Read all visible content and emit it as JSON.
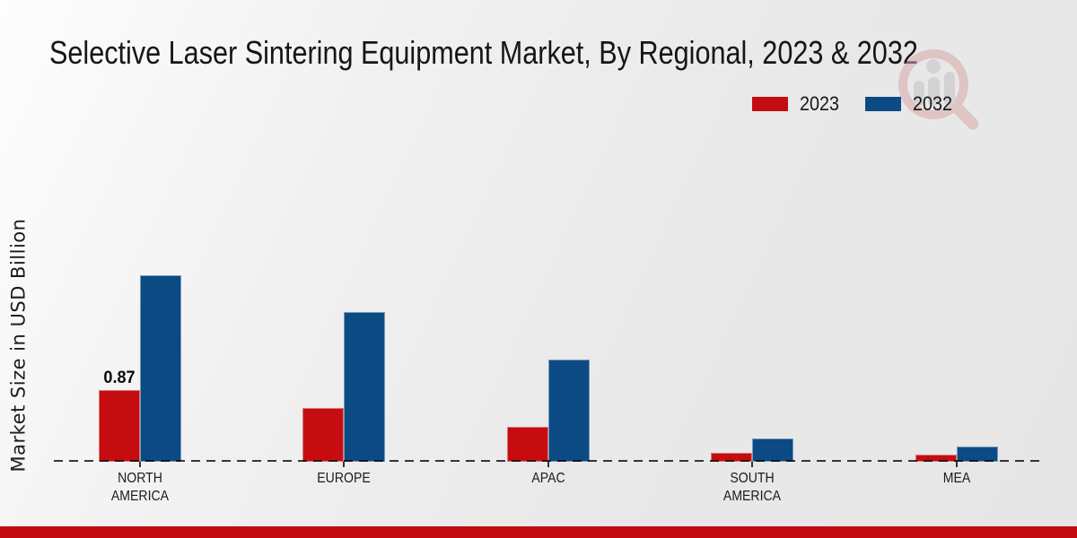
{
  "chart_data": {
    "type": "bar",
    "title": "Selective Laser Sintering Equipment Market, By Regional, 2023 & 2032",
    "xlabel": "",
    "ylabel": "Market Size in USD Billion",
    "ylim": [
      0,
      2.5
    ],
    "grid": false,
    "legend_position": "top-right",
    "baseline_style": "dashed",
    "categories": [
      "NORTH\nAMERICA",
      "EUROPE",
      "APAC",
      "SOUTH\nAMERICA",
      "MEA"
    ],
    "series": [
      {
        "name": "2023",
        "color": "#c50d11",
        "values": [
          0.87,
          0.65,
          0.42,
          0.11,
          0.09
        ]
      },
      {
        "name": "2032",
        "color": "#0c4a84",
        "values": [
          2.26,
          1.81,
          1.24,
          0.28,
          0.18
        ]
      }
    ],
    "annotations": [
      {
        "series": "2023",
        "category_index": 0,
        "text": "0.87"
      }
    ]
  },
  "icons": {
    "watermark": "magnifier-people-logo"
  },
  "theme": {
    "footer_bar_color": "#c20b10",
    "baseline_color": "#3a3a3a",
    "watermark_ring_color": "#d8a8a8",
    "watermark_figure_color": "#c3c3c7"
  }
}
